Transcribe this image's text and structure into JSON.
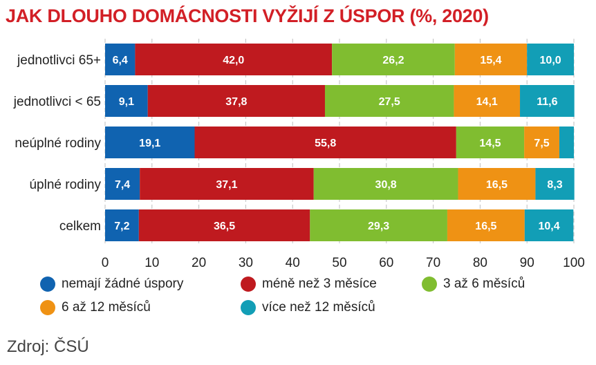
{
  "title": "JAK DLOUHO DOMÁCNOSTI VYŽIJÍ Z ÚSPOR (%, 2020)",
  "source": "Zdroj: ČSÚ",
  "chart_data": {
    "type": "bar",
    "orientation": "horizontal",
    "stacked": true,
    "title": "JAK DLOUHO DOMÁCNOSTI VYŽIJÍ Z ÚSPOR (%, 2020)",
    "xlim": [
      0,
      100
    ],
    "xticks": [
      0,
      10,
      20,
      30,
      40,
      50,
      60,
      70,
      80,
      90,
      100
    ],
    "grid": true,
    "legend_position": "bottom",
    "categories": [
      "jednotlivci 65+",
      "jednotlivci < 65",
      "neúplné rodiny",
      "úplné rodiny",
      "celkem"
    ],
    "series": [
      {
        "name": "nemají žádné úspory",
        "color": "#1063b0",
        "values": [
          6.4,
          9.1,
          19.1,
          7.4,
          7.2
        ],
        "labels": [
          "6,4",
          "9,1",
          "19,1",
          "7,4",
          "7,2"
        ]
      },
      {
        "name": "méně než 3 měsíce",
        "color": "#bf1a1f",
        "values": [
          42.0,
          37.8,
          55.8,
          37.1,
          36.5
        ],
        "labels": [
          "42,0",
          "37,8",
          "55,8",
          "37,1",
          "36,5"
        ]
      },
      {
        "name": "3 až 6 měsíců",
        "color": "#80bd30",
        "values": [
          26.2,
          27.5,
          14.5,
          30.8,
          29.3
        ],
        "labels": [
          "26,2",
          "27,5",
          "14,5",
          "30,8",
          "29,3"
        ]
      },
      {
        "name": "6 až 12 měsíců",
        "color": "#ef9214",
        "values": [
          15.4,
          14.1,
          7.5,
          16.5,
          16.5
        ],
        "labels": [
          "15,4",
          "14,1",
          "7,5",
          "16,5",
          "16,5"
        ]
      },
      {
        "name": "více než 12 měsíců",
        "color": "#129eb6",
        "values": [
          10.0,
          11.6,
          3.1,
          8.3,
          10.4
        ],
        "labels": [
          "10,0",
          "11,6",
          "",
          "8,3",
          "10,4"
        ]
      }
    ]
  }
}
